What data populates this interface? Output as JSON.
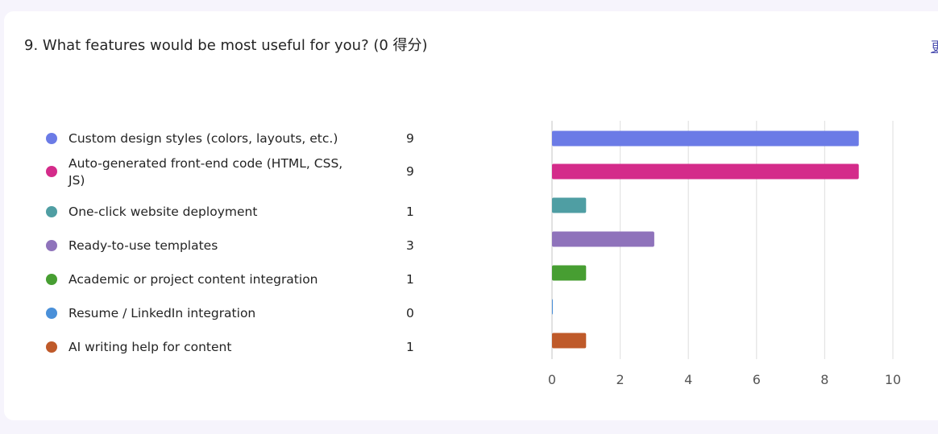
{
  "question": {
    "title": "9. What features would be most useful for you? (0 得分)",
    "more_link": "更"
  },
  "chart_data": {
    "type": "bar",
    "orientation": "horizontal",
    "categories": [
      "Custom design styles (colors, layouts, etc.)",
      "Auto-generated front-end code (HTML, CSS, JS)",
      "One-click website deployment",
      "Ready-to-use templates",
      "Academic or project content integration",
      "Resume / LinkedIn integration",
      "AI writing help for content"
    ],
    "values": [
      9,
      9,
      1,
      3,
      1,
      0,
      1
    ],
    "colors": [
      "#6b7be6",
      "#d42b8a",
      "#4f9ea3",
      "#8f73bb",
      "#479e32",
      "#4a90d9",
      "#bf5a2a"
    ],
    "xlim": [
      0,
      10
    ],
    "xticks": [
      "0",
      "2",
      "4",
      "6",
      "8",
      "10"
    ],
    "grid": true,
    "legend": "left"
  }
}
